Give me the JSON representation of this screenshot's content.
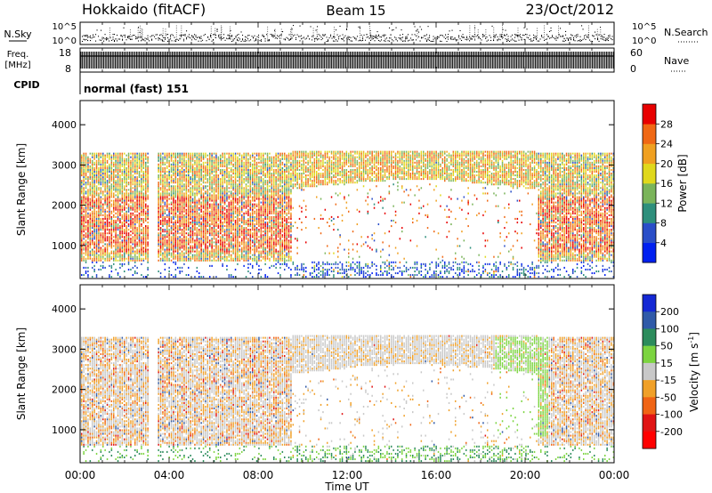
{
  "header": {
    "station": "Hokkaido (fitACF)",
    "beam": "Beam 15",
    "date": "23/Oct/2012"
  },
  "summary_panels": {
    "nsky": {
      "label": "N.Sky",
      "left_ticks": [
        "10^5",
        "10^0"
      ],
      "right_ticks": [
        "10^5",
        "10^0"
      ],
      "right_label": "N.Search"
    },
    "freq": {
      "label_line1": "Freq.",
      "label_line2": "[MHz]",
      "left_ticks": [
        "18",
        "8"
      ],
      "right_ticks": [
        "60",
        "0"
      ],
      "right_label": "Nave"
    },
    "cpid": {
      "label": "CPID",
      "value": "normal (fast) 151"
    }
  },
  "chart_data": [
    {
      "type": "heatmap",
      "name": "power",
      "ylabel": "Slant Range [km]",
      "ylim": [
        180,
        4600
      ],
      "yticks": [
        "1000",
        "2000",
        "3000",
        "4000"
      ],
      "xlim_hours": [
        0,
        24
      ],
      "colorbar": {
        "label": "Power [dB]",
        "ticks": [
          "4",
          "8",
          "12",
          "16",
          "20",
          "24",
          "28"
        ],
        "range": [
          0,
          32
        ],
        "colors": [
          "#0020f0",
          "#2a4ec8",
          "#2e8f7c",
          "#7ab45a",
          "#e0d81c",
          "#f0a020",
          "#f06814",
          "#e80000"
        ]
      }
    },
    {
      "type": "heatmap",
      "name": "velocity",
      "ylabel": "Slant Range [km]",
      "ylim": [
        180,
        4600
      ],
      "yticks": [
        "1000",
        "2000",
        "3000",
        "4000"
      ],
      "xlim_hours": [
        0,
        24
      ],
      "colorbar": {
        "label": "Velocity [m s",
        "label_sup": "-1",
        "label_close": "]",
        "ticks": [
          "200",
          "100",
          "50",
          "15",
          "-15",
          "-50",
          "-100",
          "-200"
        ],
        "colors": [
          "#1428d4",
          "#305aa8",
          "#2c8c5c",
          "#7cd440",
          "#c8c8c8",
          "#f0a028",
          "#f06414",
          "#e01414",
          "#ff0000"
        ]
      }
    }
  ],
  "time_axis": {
    "label": "Time UT",
    "ticks": [
      "00:00",
      "04:00",
      "08:00",
      "12:00",
      "16:00",
      "20:00",
      "00:00"
    ]
  }
}
